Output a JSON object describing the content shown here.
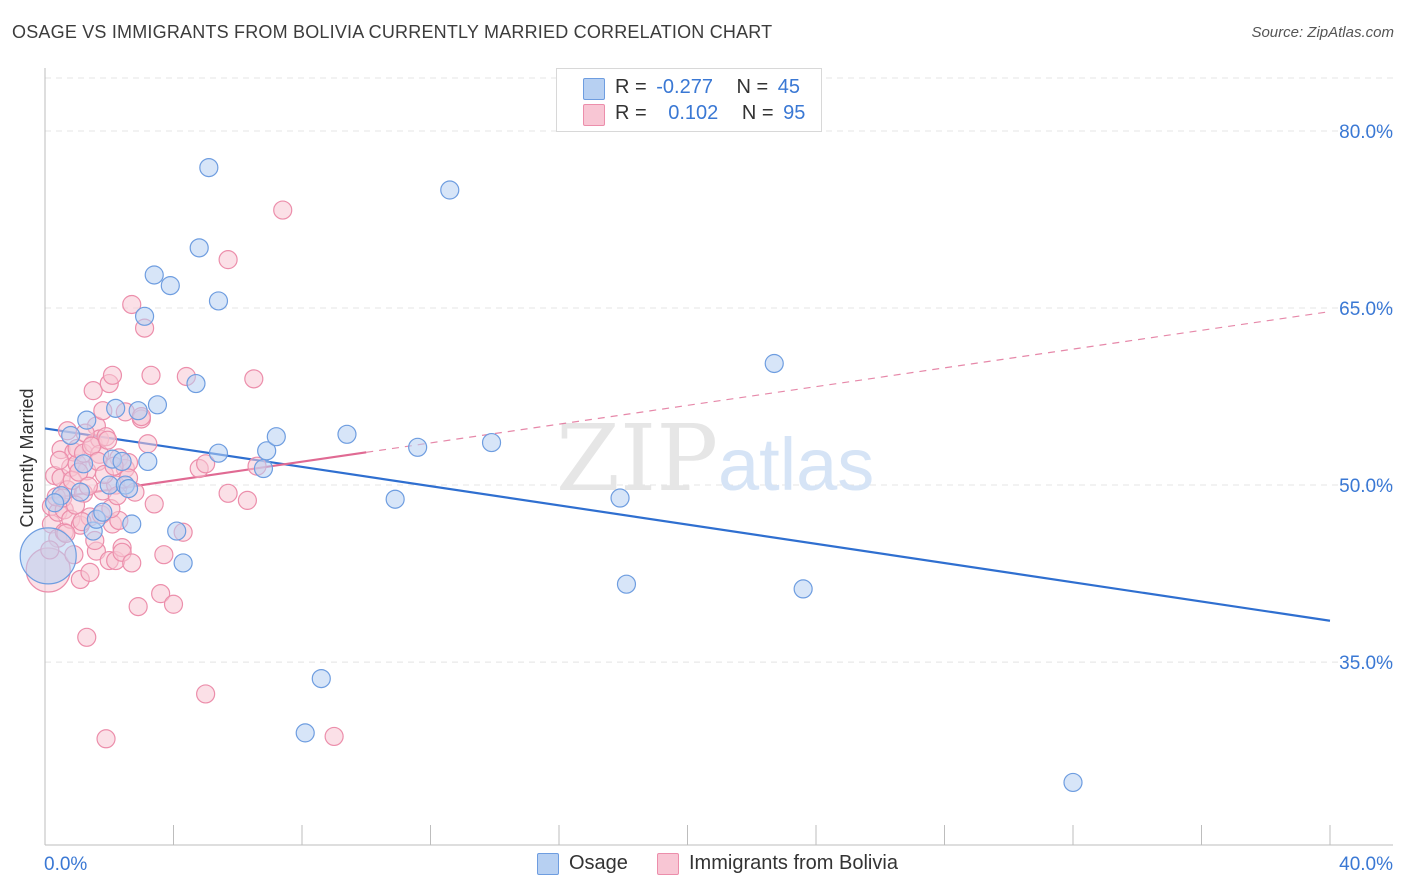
{
  "title": "OSAGE VS IMMIGRANTS FROM BOLIVIA CURRENTLY MARRIED CORRELATION CHART",
  "source": "Source: ZipAtlas.com",
  "watermark": {
    "zip": "ZIP",
    "atlas": "atlas"
  },
  "legend": {
    "series1": {
      "r_label": "R =",
      "r_value": "-0.277",
      "n_label": "N =",
      "n_value": "45",
      "name": "Osage"
    },
    "series2": {
      "r_label": "R =",
      "r_value": "0.102",
      "n_label": "N =",
      "n_value": "95",
      "name": "Immigrants from Bolivia"
    }
  },
  "colors": {
    "osage_fill": "#b7d0f2",
    "osage_stroke": "#6e9de0",
    "osage_line": "#2f6fd0",
    "bolivia_fill": "#f8c6d4",
    "bolivia_stroke": "#ec8eab",
    "bolivia_line": "#e06a93",
    "grid": "#e4e4e4",
    "axis_text": "#3a78d4"
  },
  "chart_data": {
    "type": "scatter",
    "title": "OSAGE VS IMMIGRANTS FROM BOLIVIA CURRENTLY MARRIED CORRELATION CHART",
    "ylabel": "Currently Married",
    "xlim": [
      0,
      40
    ],
    "ylim": [
      19.5,
      85
    ],
    "x_tick_labels": [
      "0.0%",
      "40.0%"
    ],
    "y_ticks": [
      35,
      50,
      65,
      80
    ],
    "y_tick_labels": [
      "35.0%",
      "50.0%",
      "65.0%",
      "80.0%"
    ],
    "series": [
      {
        "name": "Osage",
        "r": -0.277,
        "n": 45,
        "trend": {
          "x": [
            0,
            40
          ],
          "y": [
            54.8,
            38.5
          ],
          "dashed_from": null
        },
        "points": [
          [
            0.1,
            44.0
          ],
          [
            0.5,
            49.1
          ],
          [
            0.8,
            54.2
          ],
          [
            1.1,
            49.4
          ],
          [
            1.3,
            55.5
          ],
          [
            1.5,
            46.1
          ],
          [
            1.6,
            47.1
          ],
          [
            1.8,
            47.7
          ],
          [
            2.0,
            50.0
          ],
          [
            2.1,
            52.2
          ],
          [
            2.2,
            56.5
          ],
          [
            2.4,
            52.0
          ],
          [
            2.5,
            50.0
          ],
          [
            2.7,
            46.7
          ],
          [
            2.9,
            56.3
          ],
          [
            3.1,
            64.3
          ],
          [
            3.2,
            52.0
          ],
          [
            3.4,
            67.8
          ],
          [
            3.5,
            56.8
          ],
          [
            3.9,
            66.9
          ],
          [
            4.1,
            46.1
          ],
          [
            4.3,
            43.4
          ],
          [
            4.7,
            58.6
          ],
          [
            4.8,
            70.1
          ],
          [
            5.1,
            76.9
          ],
          [
            5.4,
            65.6
          ],
          [
            5.4,
            52.7
          ],
          [
            6.8,
            51.4
          ],
          [
            6.9,
            52.9
          ],
          [
            7.2,
            54.1
          ],
          [
            8.1,
            29.0
          ],
          [
            8.6,
            33.6
          ],
          [
            9.4,
            54.3
          ],
          [
            10.9,
            48.8
          ],
          [
            11.6,
            53.2
          ],
          [
            12.6,
            75.0
          ],
          [
            13.9,
            53.6
          ],
          [
            17.9,
            48.9
          ],
          [
            18.1,
            41.6
          ],
          [
            22.7,
            60.3
          ],
          [
            23.6,
            41.2
          ],
          [
            32.0,
            24.8
          ],
          [
            0.3,
            48.5
          ],
          [
            1.2,
            51.8
          ],
          [
            2.6,
            49.7
          ]
        ],
        "sizes": [
          28,
          9,
          9,
          9,
          9,
          9,
          9,
          9,
          9,
          9,
          9,
          9,
          9,
          9,
          9,
          9,
          9,
          9,
          9,
          9,
          9,
          9,
          9,
          9,
          9,
          9,
          9,
          9,
          9,
          9,
          9,
          9,
          9,
          9,
          9,
          9,
          9,
          9,
          9,
          9,
          9,
          9,
          9,
          9,
          9
        ]
      },
      {
        "name": "Immigrants from Bolivia",
        "r": 0.102,
        "n": 95,
        "trend": {
          "x": [
            0,
            40
          ],
          "y": [
            48.8,
            64.7
          ],
          "solid_until": 10
        },
        "points": [
          [
            0.1,
            42.8
          ],
          [
            0.2,
            46.7
          ],
          [
            0.2,
            48.2
          ],
          [
            0.3,
            50.8
          ],
          [
            0.4,
            45.5
          ],
          [
            0.4,
            47.7
          ],
          [
            0.5,
            50.6
          ],
          [
            0.5,
            53.0
          ],
          [
            0.6,
            46.0
          ],
          [
            0.6,
            47.9
          ],
          [
            0.7,
            49.6
          ],
          [
            0.7,
            54.6
          ],
          [
            0.8,
            51.5
          ],
          [
            0.8,
            47.1
          ],
          [
            0.9,
            52.8
          ],
          [
            0.9,
            44.1
          ],
          [
            1.0,
            51.8
          ],
          [
            1.0,
            53.1
          ],
          [
            1.1,
            42.0
          ],
          [
            1.1,
            46.6
          ],
          [
            1.2,
            52.7
          ],
          [
            1.2,
            49.3
          ],
          [
            1.3,
            51.2
          ],
          [
            1.3,
            37.1
          ],
          [
            1.4,
            42.6
          ],
          [
            1.4,
            47.3
          ],
          [
            1.5,
            53.5
          ],
          [
            1.5,
            58.0
          ],
          [
            1.6,
            55.0
          ],
          [
            1.6,
            44.4
          ],
          [
            1.7,
            53.9
          ],
          [
            1.7,
            52.6
          ],
          [
            1.8,
            56.3
          ],
          [
            1.8,
            49.5
          ],
          [
            1.9,
            54.1
          ],
          [
            1.9,
            28.5
          ],
          [
            2.0,
            58.6
          ],
          [
            2.0,
            43.6
          ],
          [
            2.1,
            59.3
          ],
          [
            2.1,
            46.7
          ],
          [
            2.2,
            50.0
          ],
          [
            2.2,
            43.6
          ],
          [
            2.3,
            47.0
          ],
          [
            2.3,
            52.3
          ],
          [
            2.4,
            44.7
          ],
          [
            2.4,
            44.3
          ],
          [
            2.5,
            51.4
          ],
          [
            2.5,
            56.2
          ],
          [
            2.6,
            51.9
          ],
          [
            2.6,
            50.6
          ],
          [
            2.7,
            65.3
          ],
          [
            2.7,
            43.4
          ],
          [
            2.8,
            49.4
          ],
          [
            2.9,
            39.7
          ],
          [
            3.0,
            55.6
          ],
          [
            3.0,
            55.8
          ],
          [
            3.1,
            63.3
          ],
          [
            3.2,
            53.5
          ],
          [
            3.3,
            59.3
          ],
          [
            3.4,
            48.4
          ],
          [
            3.6,
            40.8
          ],
          [
            3.7,
            44.1
          ],
          [
            4.0,
            39.9
          ],
          [
            4.3,
            46.0
          ],
          [
            4.4,
            59.2
          ],
          [
            4.8,
            51.4
          ],
          [
            5.0,
            51.8
          ],
          [
            5.0,
            32.3
          ],
          [
            5.7,
            69.1
          ],
          [
            5.7,
            49.3
          ],
          [
            6.3,
            48.7
          ],
          [
            6.5,
            59.0
          ],
          [
            6.6,
            51.6
          ],
          [
            7.4,
            73.3
          ],
          [
            9.0,
            28.7
          ],
          [
            0.15,
            44.5
          ],
          [
            0.35,
            49.0
          ],
          [
            0.45,
            52.1
          ],
          [
            0.55,
            48.9
          ],
          [
            0.65,
            45.9
          ],
          [
            0.85,
            50.4
          ],
          [
            0.95,
            48.3
          ],
          [
            1.05,
            51.1
          ],
          [
            1.15,
            46.9
          ],
          [
            1.25,
            54.4
          ],
          [
            1.35,
            49.9
          ],
          [
            1.45,
            53.3
          ],
          [
            1.55,
            45.3
          ],
          [
            1.65,
            52.0
          ],
          [
            1.75,
            47.5
          ],
          [
            1.85,
            50.9
          ],
          [
            1.95,
            53.8
          ],
          [
            2.05,
            48.0
          ],
          [
            2.15,
            51.6
          ],
          [
            2.25,
            49.1
          ]
        ],
        "sizes": [
          22,
          9,
          9,
          9,
          9,
          9,
          9,
          9,
          9,
          9,
          9,
          9,
          9,
          9,
          9,
          9,
          9,
          9,
          9,
          9,
          9,
          9,
          9,
          9,
          9,
          9,
          9,
          9,
          9,
          9,
          9,
          9,
          9,
          9,
          9,
          9,
          9,
          9,
          9,
          9,
          9,
          9,
          9,
          9,
          9,
          9,
          9,
          9,
          9,
          9,
          9,
          9,
          9,
          9,
          9,
          9,
          9,
          9,
          9,
          9,
          9,
          9,
          9,
          9,
          9,
          9,
          9,
          9,
          9,
          9,
          9,
          9,
          9,
          9,
          9,
          9,
          9,
          9,
          9,
          9,
          9,
          9,
          9,
          9,
          9,
          9,
          9,
          9,
          9,
          9,
          9,
          9,
          9,
          9,
          9
        ]
      }
    ]
  }
}
